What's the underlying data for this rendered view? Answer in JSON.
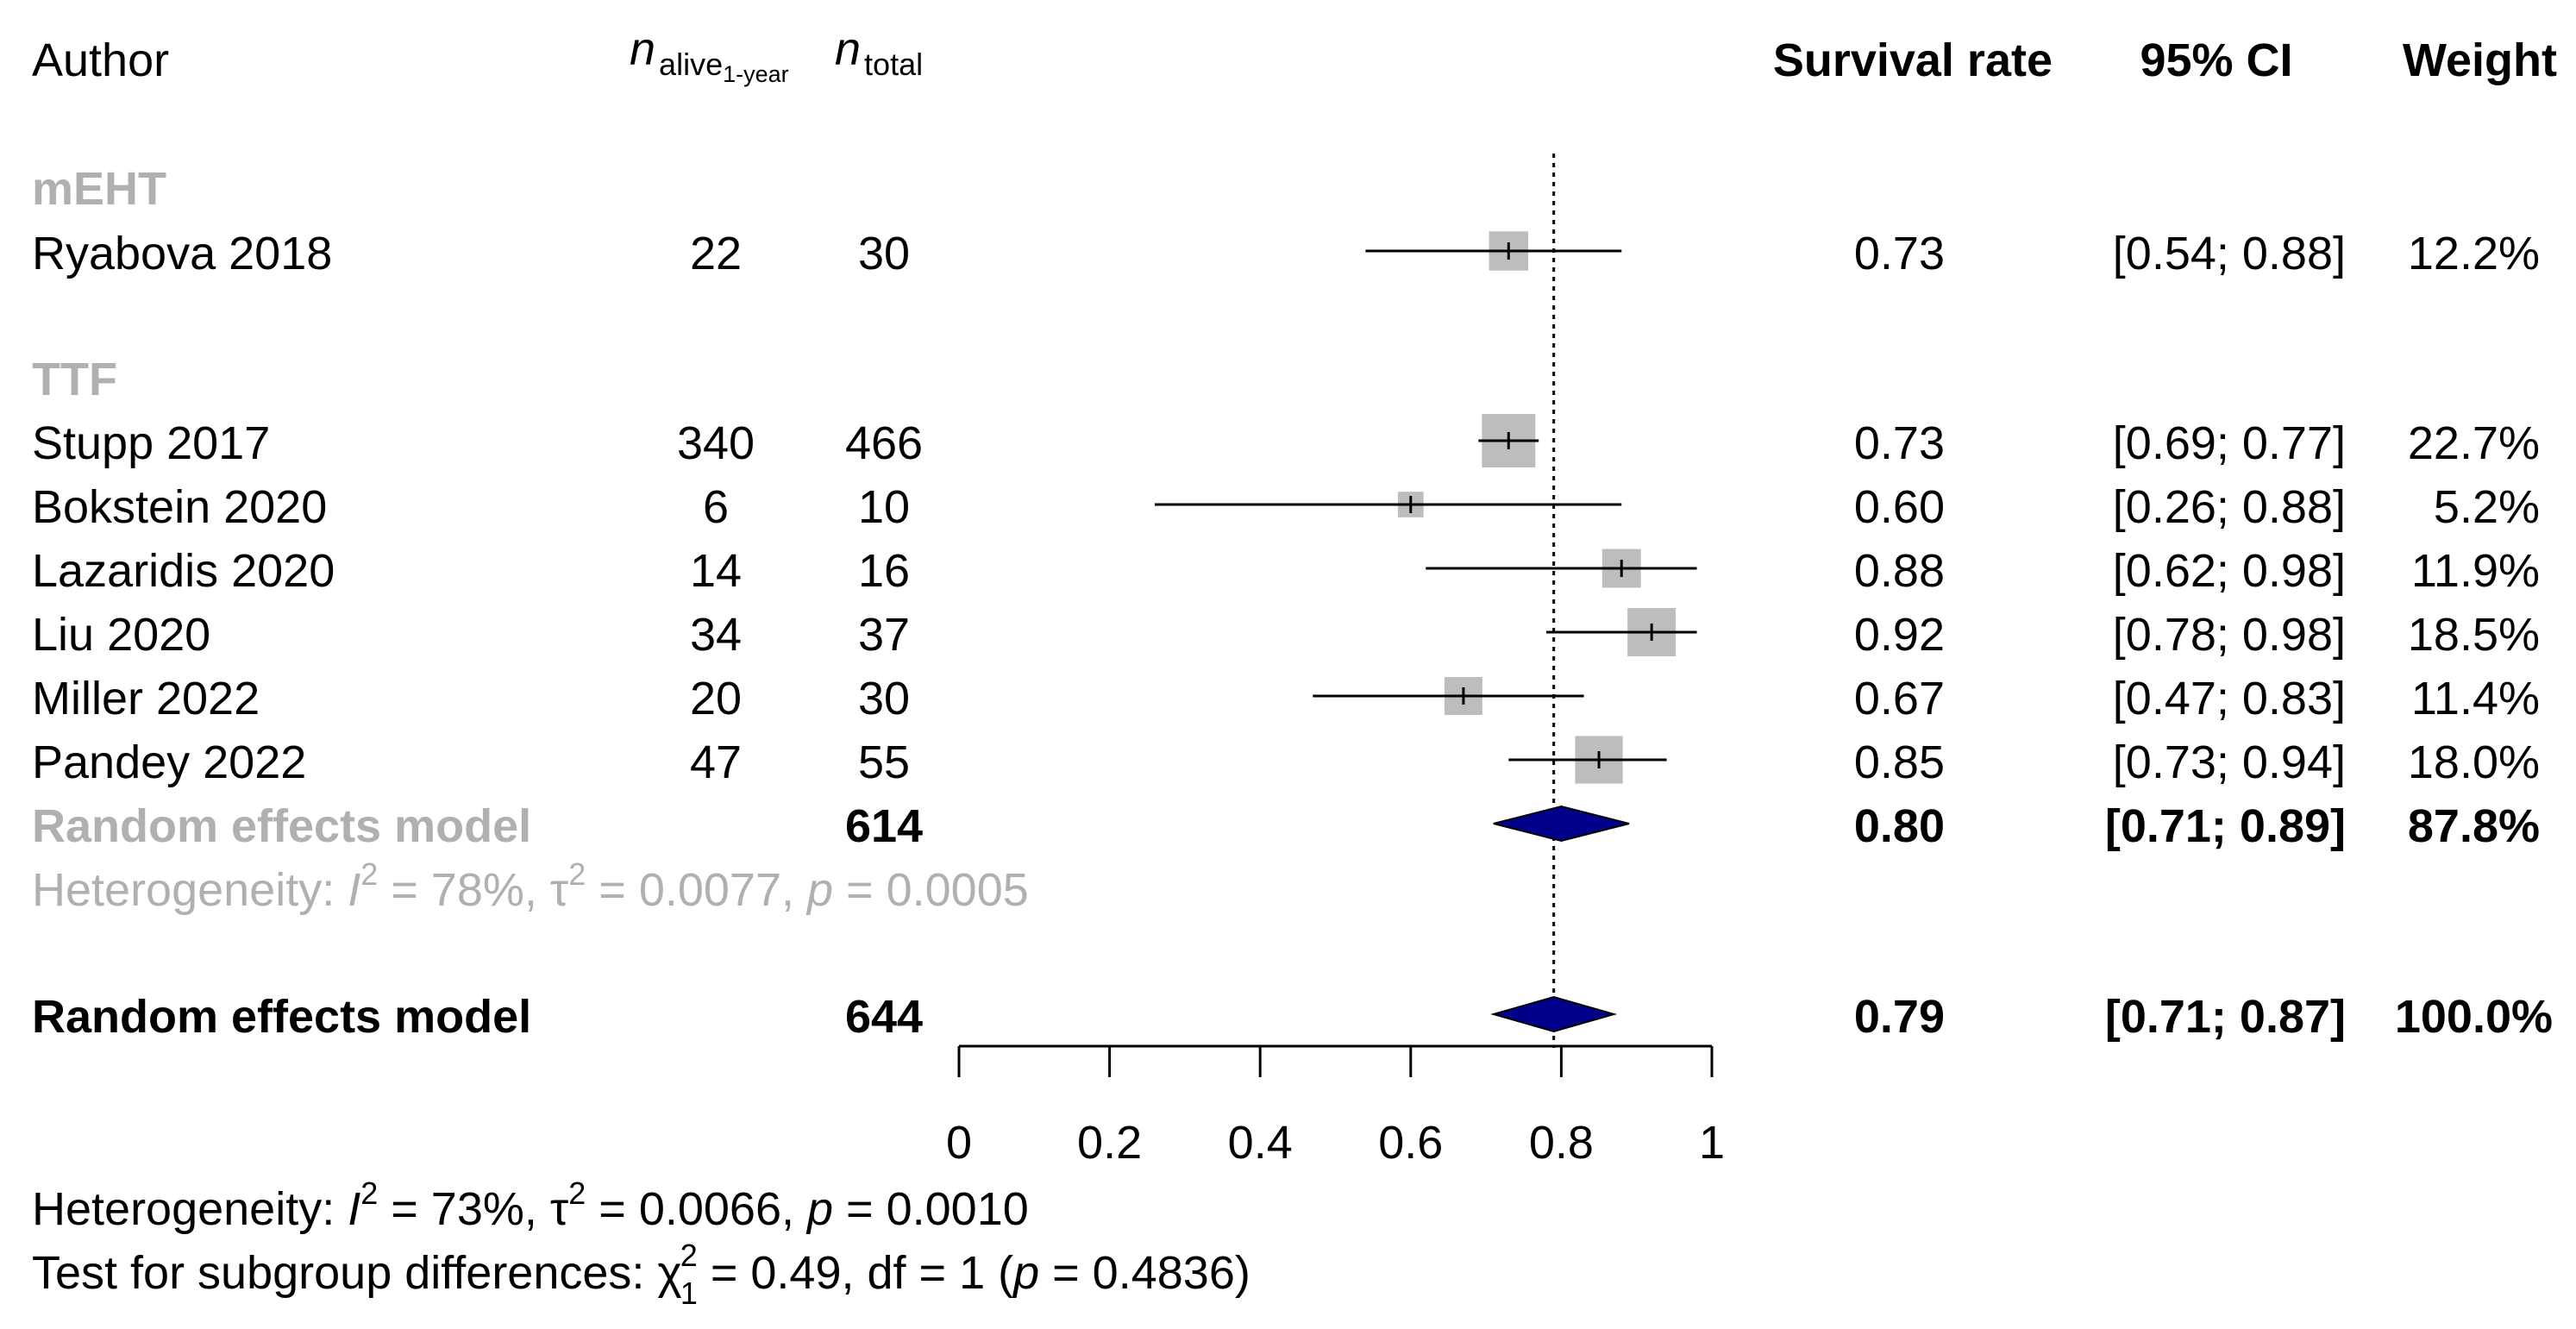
{
  "chart_data": {
    "type": "forest",
    "title": "",
    "xlabel": "",
    "xlim": [
      0,
      1
    ],
    "x_ticks": [
      "0",
      "0.2",
      "0.4",
      "0.6",
      "0.8",
      "1"
    ],
    "x_tick_values": [
      0,
      0.2,
      0.4,
      0.6,
      0.8,
      1
    ],
    "reference_line": 0.79,
    "headers": {
      "author": "Author",
      "n_alive_main": "n",
      "n_alive_sub": "alive",
      "n_alive_subsub": "1-year",
      "n_total_main": "n",
      "n_total_sub": "total",
      "survival_rate": "Survival rate",
      "ci": "95% CI",
      "weight": "Weight"
    },
    "groups": [
      {
        "name": "mEHT",
        "studies": [
          {
            "author": "Ryabova 2018",
            "n_alive": "22",
            "n_total": "30",
            "rate": 0.73,
            "lower": 0.54,
            "upper": 0.88,
            "rate_label": "0.73",
            "ci_label": "[0.54; 0.88]",
            "weight_label": "12.2%",
            "weight": 12.2
          }
        ]
      },
      {
        "name": "TTF",
        "studies": [
          {
            "author": "Stupp 2017",
            "n_alive": "340",
            "n_total": "466",
            "rate": 0.73,
            "lower": 0.69,
            "upper": 0.77,
            "rate_label": "0.73",
            "ci_label": "[0.69; 0.77]",
            "weight_label": "22.7%",
            "weight": 22.7
          },
          {
            "author": "Bokstein 2020",
            "n_alive": "6",
            "n_total": "10",
            "rate": 0.6,
            "lower": 0.26,
            "upper": 0.88,
            "rate_label": "0.60",
            "ci_label": "[0.26; 0.88]",
            "weight_label": "5.2%",
            "weight": 5.2
          },
          {
            "author": "Lazaridis 2020",
            "n_alive": "14",
            "n_total": "16",
            "rate": 0.88,
            "lower": 0.62,
            "upper": 0.98,
            "rate_label": "0.88",
            "ci_label": "[0.62; 0.98]",
            "weight_label": "11.9%",
            "weight": 11.9
          },
          {
            "author": "Liu 2020",
            "n_alive": "34",
            "n_total": "37",
            "rate": 0.92,
            "lower": 0.78,
            "upper": 0.98,
            "rate_label": "0.92",
            "ci_label": "[0.78; 0.98]",
            "weight_label": "18.5%",
            "weight": 18.5
          },
          {
            "author": "Miller 2022",
            "n_alive": "20",
            "n_total": "30",
            "rate": 0.67,
            "lower": 0.47,
            "upper": 0.83,
            "rate_label": "0.67",
            "ci_label": "[0.47; 0.83]",
            "weight_label": "11.4%",
            "weight": 11.4
          },
          {
            "author": "Pandey 2022",
            "n_alive": "47",
            "n_total": "55",
            "rate": 0.85,
            "lower": 0.73,
            "upper": 0.94,
            "rate_label": "0.85",
            "ci_label": "[0.73; 0.94]",
            "weight_label": "18.0%",
            "weight": 18.0
          }
        ],
        "subgroup_model": {
          "label": "Random effects model",
          "n_total": "614",
          "rate": 0.8,
          "lower": 0.71,
          "upper": 0.89,
          "rate_label": "0.80",
          "ci_label": "[0.71; 0.89]",
          "weight_label": "87.8%"
        },
        "heterogeneity": {
          "prefix": "Heterogeneity: ",
          "i2_symbol": "I",
          "i2_sup": "2",
          "i2_value": " = 78%, ",
          "tau_symbol": "τ",
          "tau_sup": "2",
          "tau_value": " = 0.0077, ",
          "p_symbol": "p",
          "p_value": " = 0.0005"
        }
      }
    ],
    "overall_model": {
      "label": "Random effects model",
      "n_total": "644",
      "rate": 0.79,
      "lower": 0.71,
      "upper": 0.87,
      "rate_label": "0.79",
      "ci_label": "[0.71; 0.87]",
      "weight_label": "100.0%"
    },
    "overall_heterogeneity": {
      "prefix": "Heterogeneity: ",
      "i2_symbol": "I",
      "i2_sup": "2",
      "i2_value": " = 73%, ",
      "tau_symbol": "τ",
      "tau_sup": "2",
      "tau_value": " = 0.0066, ",
      "p_symbol": "p",
      "p_value": " = 0.0010"
    },
    "subgroup_test": {
      "prefix": "Test for subgroup differences: ",
      "chi_symbol": "χ",
      "chi_sup": "2",
      "chi_sub": "1",
      "chi_value": " = 0.49, df = 1 (",
      "p_symbol": "p",
      "p_value": " = 0.4836)"
    },
    "colors": {
      "text": "#000000",
      "group_text": "#b0b0b0",
      "box": "#bdbdbd",
      "diamond": "#00008b",
      "line": "#000000"
    }
  }
}
